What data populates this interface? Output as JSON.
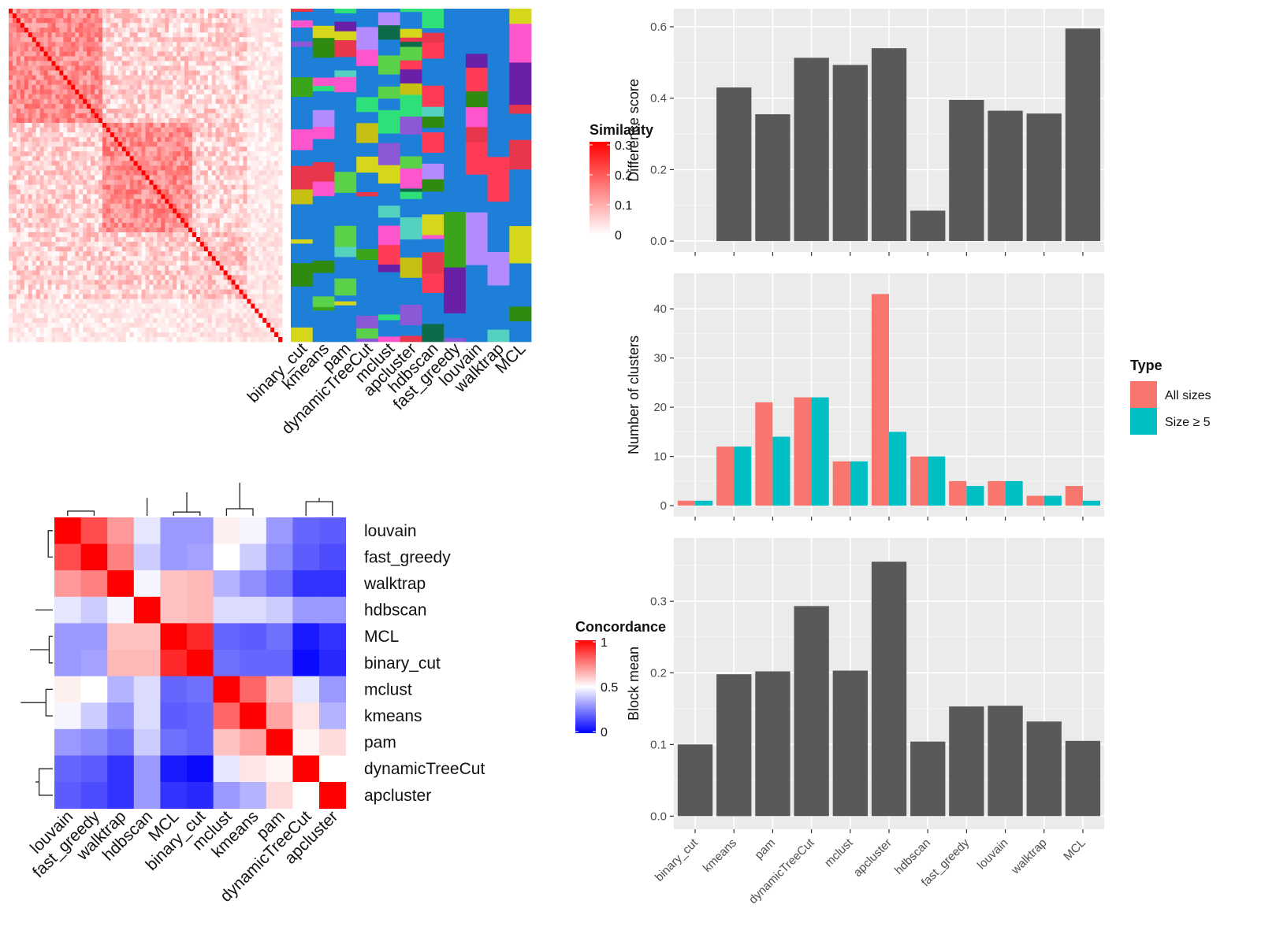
{
  "methods": [
    "binary_cut",
    "kmeans",
    "pam",
    "dynamicTreeCut",
    "mclust",
    "apcluster",
    "hdbscan",
    "fast_greedy",
    "louvain",
    "walktrap",
    "MCL"
  ],
  "similarity_legend": {
    "title": "Similarity",
    "ticks": [
      "0",
      "0.1",
      "0.2",
      "0.3"
    ],
    "low_color": "#ffffff",
    "high_color": "#ff0000"
  },
  "concordance_legend": {
    "title": "Concordance",
    "ticks": [
      "0",
      "0.5",
      "1"
    ],
    "colors": [
      "#0000ff",
      "#ffffff",
      "#ff0000"
    ]
  },
  "concordance_order": [
    "louvain",
    "fast_greedy",
    "walktrap",
    "hdbscan",
    "MCL",
    "binary_cut",
    "mclust",
    "kmeans",
    "pam",
    "dynamicTreeCut",
    "apcluster"
  ],
  "concordance_matrix": [
    [
      1.0,
      0.85,
      0.7,
      0.45,
      0.3,
      0.3,
      0.53,
      0.48,
      0.3,
      0.2,
      0.18
    ],
    [
      0.85,
      1.0,
      0.75,
      0.4,
      0.3,
      0.32,
      0.5,
      0.4,
      0.27,
      0.18,
      0.15
    ],
    [
      0.7,
      0.75,
      1.0,
      0.48,
      0.62,
      0.64,
      0.35,
      0.28,
      0.22,
      0.1,
      0.1
    ],
    [
      0.45,
      0.4,
      0.48,
      1.0,
      0.62,
      0.64,
      0.43,
      0.43,
      0.4,
      0.3,
      0.3
    ],
    [
      0.3,
      0.3,
      0.62,
      0.62,
      1.0,
      0.92,
      0.2,
      0.18,
      0.22,
      0.05,
      0.1
    ],
    [
      0.3,
      0.32,
      0.64,
      0.64,
      0.92,
      1.0,
      0.22,
      0.2,
      0.2,
      0.02,
      0.08
    ],
    [
      0.53,
      0.5,
      0.35,
      0.43,
      0.2,
      0.22,
      1.0,
      0.8,
      0.62,
      0.45,
      0.3
    ],
    [
      0.48,
      0.4,
      0.28,
      0.43,
      0.18,
      0.2,
      0.8,
      1.0,
      0.68,
      0.55,
      0.35
    ],
    [
      0.3,
      0.27,
      0.22,
      0.4,
      0.22,
      0.2,
      0.62,
      0.68,
      1.0,
      0.52,
      0.57
    ],
    [
      0.2,
      0.18,
      0.1,
      0.3,
      0.05,
      0.02,
      0.45,
      0.55,
      0.52,
      1.0,
      0.5
    ],
    [
      0.18,
      0.15,
      0.1,
      0.3,
      0.1,
      0.08,
      0.3,
      0.35,
      0.57,
      0.5,
      1.0
    ]
  ],
  "chart_data": [
    {
      "type": "bar",
      "title": "",
      "xlabel": "",
      "ylabel": "Difference score",
      "categories": [
        "binary_cut",
        "kmeans",
        "pam",
        "dynamicTreeCut",
        "mclust",
        "apcluster",
        "hdbscan",
        "fast_greedy",
        "louvain",
        "walktrap",
        "MCL"
      ],
      "values": [
        0.0,
        0.43,
        0.355,
        0.513,
        0.493,
        0.54,
        0.085,
        0.395,
        0.365,
        0.357,
        0.595
      ],
      "ylim": [
        0,
        0.62
      ],
      "yticks": [
        "0.0",
        "0.2",
        "0.4",
        "0.6"
      ],
      "bar_color": "#595959",
      "grid": true
    },
    {
      "type": "bar",
      "title": "",
      "xlabel": "",
      "ylabel": "Number of clusters",
      "categories": [
        "binary_cut",
        "kmeans",
        "pam",
        "dynamicTreeCut",
        "mclust",
        "apcluster",
        "hdbscan",
        "fast_greedy",
        "louvain",
        "walktrap",
        "MCL"
      ],
      "series": [
        {
          "name": "All sizes",
          "color": "#f8766d",
          "values": [
            1,
            12,
            21,
            22,
            9,
            43,
            10,
            5,
            5,
            2,
            4
          ]
        },
        {
          "name": "Size ≥ 5",
          "color": "#00bfc4",
          "values": [
            1,
            12,
            14,
            22,
            9,
            15,
            10,
            4,
            5,
            2,
            1
          ]
        }
      ],
      "legend": {
        "title": "Type",
        "position": "right"
      },
      "ylim": [
        0,
        45
      ],
      "yticks": [
        "0",
        "10",
        "20",
        "30",
        "40"
      ],
      "grid": true
    },
    {
      "type": "bar",
      "title": "",
      "xlabel": "",
      "ylabel": "Block mean",
      "categories": [
        "binary_cut",
        "kmeans",
        "pam",
        "dynamicTreeCut",
        "mclust",
        "apcluster",
        "hdbscan",
        "fast_greedy",
        "louvain",
        "walktrap",
        "MCL"
      ],
      "values": [
        0.1,
        0.198,
        0.202,
        0.293,
        0.203,
        0.355,
        0.104,
        0.153,
        0.154,
        0.132,
        0.105
      ],
      "ylim": [
        0,
        0.37
      ],
      "yticks": [
        "0.0",
        "0.1",
        "0.2",
        "0.3"
      ],
      "bar_color": "#595959",
      "grid": true
    }
  ]
}
